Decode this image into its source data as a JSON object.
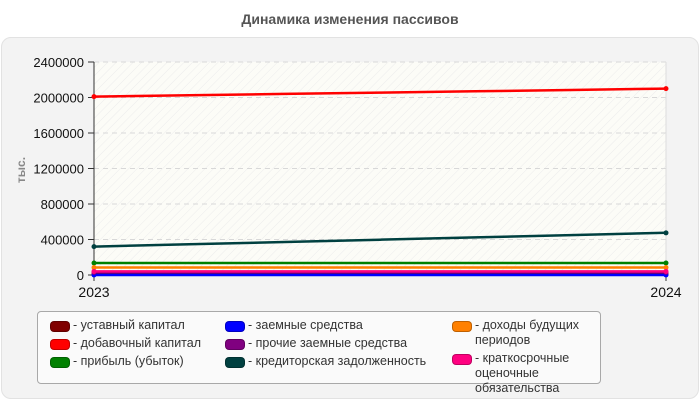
{
  "chart_data": {
    "type": "line",
    "title": "Динамика изменения пассивов",
    "xlabel": "",
    "ylabel": "тыс.",
    "x": [
      "2023",
      "2024"
    ],
    "ylim": [
      0,
      2400000
    ],
    "yticks": [
      "0",
      "400000",
      "800000",
      "1200000",
      "1600000",
      "2000000",
      "2400000"
    ],
    "grid": true,
    "legend_position": "bottom",
    "series": [
      {
        "name": "уставный капитал",
        "color": "#800000",
        "values": [
          10000,
          10000
        ]
      },
      {
        "name": "добавочный капитал",
        "color": "#ff0000",
        "values": [
          2010000,
          2100000
        ]
      },
      {
        "name": "прибыль (убыток)",
        "color": "#008000",
        "values": [
          135000,
          135000
        ]
      },
      {
        "name": "заемные средства",
        "color": "#0000ff",
        "values": [
          0,
          0
        ]
      },
      {
        "name": "прочие заемные средства",
        "color": "#800080",
        "values": [
          30000,
          30000
        ]
      },
      {
        "name": "кредиторская задолженность",
        "color": "#004040",
        "values": [
          320000,
          475000
        ]
      },
      {
        "name": "доходы будущих периодов",
        "color": "#ff8000",
        "values": [
          85000,
          85000
        ]
      },
      {
        "name": "краткосрочные оценочные обязательства",
        "color": "#ff0080",
        "values": [
          40000,
          40000
        ]
      }
    ]
  },
  "legend": {
    "col1": [
      {
        "label": "- уставный капитал",
        "color": "#800000"
      },
      {
        "label": "- добавочный капитал",
        "color": "#ff0000"
      },
      {
        "label": "- прибыль (убыток)",
        "color": "#008000"
      }
    ],
    "col2": [
      {
        "label": "- заемные средства",
        "color": "#0000ff"
      },
      {
        "label": "- прочие заемные средства",
        "color": "#800080"
      },
      {
        "label": "- кредиторская задолженность",
        "color": "#004040"
      }
    ],
    "col3": [
      {
        "label": "- доходы будущих периодов",
        "color": "#ff8000"
      },
      {
        "label": "- краткосрочные оценочные обязательства",
        "color": "#ff0080"
      }
    ]
  }
}
